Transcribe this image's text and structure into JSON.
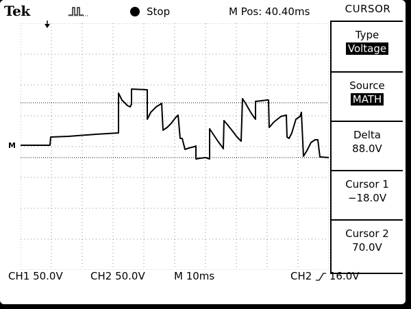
{
  "header": {
    "brand": "Tek",
    "acquisition_icon": "acquisition-pulse-icon",
    "run_state": "Stop",
    "horizontal_position": "M Pos: 40.40ms"
  },
  "menu": {
    "title": "CURSOR",
    "items": [
      {
        "label": "Type",
        "value": "Voltage",
        "selected": true
      },
      {
        "label": "Source",
        "value": "MATH",
        "selected": true
      },
      {
        "label": "Delta",
        "value": "88.0V",
        "selected": false
      },
      {
        "label": "Cursor 1",
        "value": "−18.0V",
        "selected": false
      },
      {
        "label": "Cursor 2",
        "value": "70.0V",
        "selected": false
      }
    ]
  },
  "status": {
    "ch1": "CH1  50.0V",
    "ch2": "CH2  50.0V",
    "timebase": "M 10ms",
    "trigger_source": "CH2",
    "trigger_level": "16.0V",
    "trigger_slope_icon": "rising-edge-icon"
  },
  "display": {
    "ground_marker": "M",
    "trigger_marker_icon": "trigger-position-icon",
    "background": "#ffffff",
    "trace_color": "#000000"
  }
}
